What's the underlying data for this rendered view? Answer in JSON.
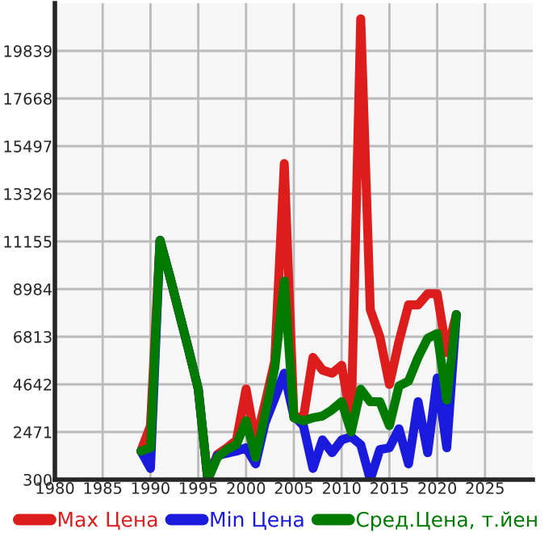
{
  "chart_data": {
    "type": "line",
    "x": [
      1989,
      1990,
      1991,
      1992,
      1993,
      1994,
      1995,
      1996,
      1997,
      1998,
      1999,
      2000,
      2001,
      2002,
      2003,
      2004,
      2005,
      2006,
      2007,
      2008,
      2009,
      2010,
      2011,
      2012,
      2013,
      2014,
      2015,
      2016,
      2017,
      2018,
      2019,
      2020,
      2021,
      2022
    ],
    "series": [
      {
        "name": "Max Цена",
        "color": "#dd1c1c",
        "values": [
          1600,
          2760,
          11200,
          9600,
          7900,
          6200,
          4430,
          300,
          1450,
          1750,
          2100,
          4430,
          2040,
          3800,
          5700,
          14700,
          3200,
          3120,
          5870,
          5290,
          5150,
          5510,
          2980,
          21300,
          8040,
          6810,
          4640,
          6600,
          8260,
          8260,
          8770,
          8770,
          6090,
          7820
        ]
      },
      {
        "name": "Min Цена",
        "color": "#1a1adc",
        "values": [
          1600,
          810,
          11200,
          9600,
          7900,
          6200,
          4430,
          300,
          1400,
          1500,
          1600,
          1750,
          1020,
          2900,
          4000,
          5150,
          3200,
          2760,
          810,
          2110,
          1530,
          2110,
          2250,
          1890,
          300,
          1670,
          1750,
          2620,
          1020,
          3850,
          1530,
          4930,
          1750,
          7820
        ]
      },
      {
        "name": "Сред.Цена, т.йен",
        "color": "#007a00",
        "values": [
          1600,
          1750,
          11200,
          9600,
          7900,
          6200,
          4430,
          300,
          1310,
          1670,
          1900,
          2980,
          1310,
          3300,
          5370,
          9350,
          3120,
          2980,
          3120,
          3200,
          3480,
          3850,
          2470,
          4420,
          3850,
          3850,
          2760,
          4570,
          4790,
          5870,
          6740,
          6960,
          3920,
          7820
        ]
      }
    ],
    "xlim": [
      1980,
      2030
    ],
    "xticks": [
      1980,
      1985,
      1990,
      1995,
      2000,
      2005,
      2010,
      2015,
      2020,
      2025
    ],
    "ylim": [
      300,
      22010
    ],
    "yticks": [
      300,
      2471,
      4642,
      6813,
      8984,
      11155,
      13326,
      15497,
      17668,
      19839
    ],
    "grid": true,
    "legend": "bottom",
    "marker": "none",
    "line_style": "solid"
  }
}
